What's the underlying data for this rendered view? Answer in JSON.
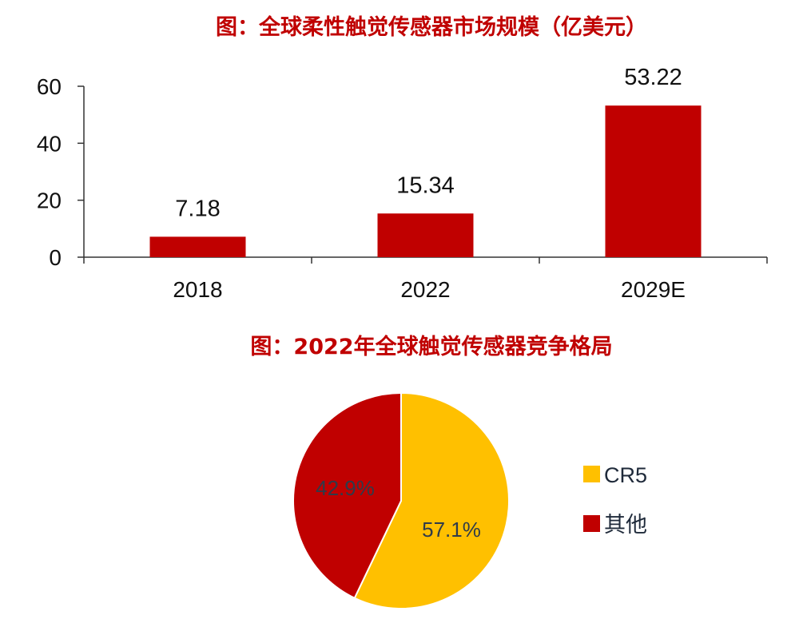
{
  "colors": {
    "accent": "#c00000",
    "bar": "#c00000",
    "cr5": "#ffc000",
    "other": "#c00000"
  },
  "chart_data": [
    {
      "type": "bar",
      "title": "图：全球柔性触觉传感器市场规模（亿美元）",
      "categories": [
        "2018",
        "2022",
        "2029E"
      ],
      "values": [
        7.18,
        15.34,
        53.22
      ],
      "value_labels": [
        "7.18",
        "15.34",
        "53.22"
      ],
      "ylim": [
        0,
        60
      ],
      "yticks": [
        0,
        20,
        40,
        60
      ],
      "ytick_labels": [
        "0",
        "20",
        "40",
        "60"
      ],
      "grid": false,
      "xlabel": "",
      "ylabel": ""
    },
    {
      "type": "pie",
      "title": "图：2022年全球触觉传感器竞争格局",
      "slices": [
        {
          "name": "CR5",
          "value": 57.1,
          "label": "57.1%",
          "color": "#ffc000"
        },
        {
          "name": "其他",
          "value": 42.9,
          "label": "42.9%",
          "color": "#c00000"
        }
      ],
      "legend": [
        "CR5",
        "其他"
      ],
      "legend_position": "right"
    }
  ]
}
